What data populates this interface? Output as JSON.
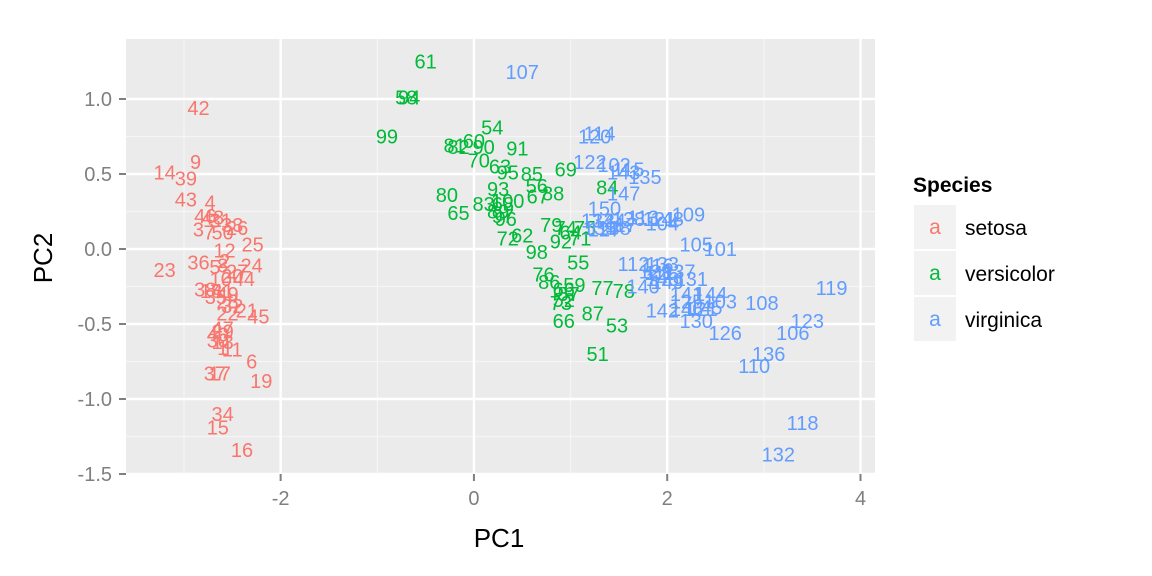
{
  "chart_data": {
    "type": "scatter",
    "title": "",
    "xlabel": "PC1",
    "ylabel": "PC2",
    "xlim": [
      -3.6,
      4.15
    ],
    "ylim": [
      -1.5,
      1.4
    ],
    "x_ticks": [
      -2,
      0,
      2,
      4
    ],
    "x_tick_labels": [
      "-2",
      "0",
      "2",
      "4"
    ],
    "y_ticks": [
      -1.5,
      -1.0,
      -0.5,
      0.0,
      0.5,
      1.0
    ],
    "y_tick_labels": [
      "-1.5",
      "-1.0",
      "-0.5",
      "0.0",
      "0.5",
      "1.0"
    ],
    "grid": true,
    "marker": "text labels (observation index)",
    "legend": {
      "title": "Species",
      "position": "right",
      "glyph": "a",
      "entries": [
        "setosa",
        "versicolor",
        "virginica"
      ]
    },
    "colors": {
      "setosa": "#f8766d",
      "versicolor": "#00ba38",
      "virginica": "#619cff",
      "panel_background": "#ebebeb",
      "grid_major": "#ffffff",
      "grid_minor": "#f5f5f5",
      "legend_key_background": "#f2f2f2"
    },
    "series": [
      {
        "name": "setosa",
        "points": [
          {
            "label": "42",
            "x": -2.85,
            "y": 0.94
          },
          {
            "label": "9",
            "x": -2.88,
            "y": 0.58
          },
          {
            "label": "14",
            "x": -3.2,
            "y": 0.51
          },
          {
            "label": "39",
            "x": -2.98,
            "y": 0.47
          },
          {
            "label": "43",
            "x": -2.98,
            "y": 0.33
          },
          {
            "label": "4",
            "x": -2.73,
            "y": 0.31
          },
          {
            "label": "46",
            "x": -2.78,
            "y": 0.22
          },
          {
            "label": "48",
            "x": -2.7,
            "y": 0.21
          },
          {
            "label": "31",
            "x": -2.62,
            "y": 0.19
          },
          {
            "label": "26",
            "x": -2.45,
            "y": 0.14
          },
          {
            "label": "3",
            "x": -2.85,
            "y": 0.13
          },
          {
            "label": "7",
            "x": -2.74,
            "y": 0.11
          },
          {
            "label": "50",
            "x": -2.6,
            "y": 0.11
          },
          {
            "label": "25",
            "x": -2.29,
            "y": 0.03
          },
          {
            "label": "12",
            "x": -2.58,
            "y": -0.01
          },
          {
            "label": "23",
            "x": -3.2,
            "y": -0.14
          },
          {
            "label": "36",
            "x": -2.85,
            "y": -0.09
          },
          {
            "label": "5",
            "x": -2.68,
            "y": -0.12
          },
          {
            "label": "8",
            "x": -2.6,
            "y": -0.11
          },
          {
            "label": "24",
            "x": -2.3,
            "y": -0.11
          },
          {
            "label": "27",
            "x": -2.45,
            "y": -0.15
          },
          {
            "label": "10",
            "x": -2.62,
            "y": -0.2
          },
          {
            "label": "44",
            "x": -2.38,
            "y": -0.2
          },
          {
            "label": "38",
            "x": -2.78,
            "y": -0.27
          },
          {
            "label": "18",
            "x": -2.72,
            "y": -0.28
          },
          {
            "label": "41",
            "x": -2.6,
            "y": -0.28
          },
          {
            "label": "35",
            "x": -2.67,
            "y": -0.32
          },
          {
            "label": "28",
            "x": -2.55,
            "y": -0.35
          },
          {
            "label": "32",
            "x": -2.5,
            "y": -0.38
          },
          {
            "label": "21",
            "x": -2.35,
            "y": -0.41
          },
          {
            "label": "22",
            "x": -2.55,
            "y": -0.43
          },
          {
            "label": "45",
            "x": -2.23,
            "y": -0.45
          },
          {
            "label": "47",
            "x": -2.6,
            "y": -0.53
          },
          {
            "label": "29",
            "x": -2.6,
            "y": -0.55
          },
          {
            "label": "40",
            "x": -2.65,
            "y": -0.57
          },
          {
            "label": "30",
            "x": -2.65,
            "y": -0.61
          },
          {
            "label": "13",
            "x": -2.6,
            "y": -0.62
          },
          {
            "label": "1",
            "x": -2.6,
            "y": -0.66
          },
          {
            "label": "11",
            "x": -2.5,
            "y": -0.67
          },
          {
            "label": "6",
            "x": -2.3,
            "y": -0.75
          },
          {
            "label": "17",
            "x": -2.63,
            "y": -0.83
          },
          {
            "label": "37",
            "x": -2.68,
            "y": -0.83
          },
          {
            "label": "19",
            "x": -2.2,
            "y": -0.88
          },
          {
            "label": "34",
            "x": -2.6,
            "y": -1.1
          },
          {
            "label": "15",
            "x": -2.65,
            "y": -1.19
          },
          {
            "label": "16",
            "x": -2.4,
            "y": -1.34
          },
          {
            "label": "2",
            "x": -2.58,
            "y": -0.08
          },
          {
            "label": "20",
            "x": -2.5,
            "y": -0.18
          },
          {
            "label": "33",
            "x": -2.5,
            "y": 0.16
          },
          {
            "label": "49",
            "x": -2.55,
            "y": -0.3
          }
        ]
      },
      {
        "name": "versicolor",
        "points": [
          {
            "label": "61",
            "x": -0.5,
            "y": 1.25
          },
          {
            "label": "58",
            "x": -0.7,
            "y": 1.01
          },
          {
            "label": "94",
            "x": -0.67,
            "y": 1.01
          },
          {
            "label": "99",
            "x": -0.9,
            "y": 0.75
          },
          {
            "label": "54",
            "x": 0.19,
            "y": 0.81
          },
          {
            "label": "81",
            "x": -0.2,
            "y": 0.69
          },
          {
            "label": "60",
            "x": 0.0,
            "y": 0.72
          },
          {
            "label": "82",
            "x": -0.16,
            "y": 0.68
          },
          {
            "label": "90",
            "x": 0.1,
            "y": 0.68
          },
          {
            "label": "91",
            "x": 0.45,
            "y": 0.67
          },
          {
            "label": "70",
            "x": 0.05,
            "y": 0.59
          },
          {
            "label": "63",
            "x": 0.27,
            "y": 0.55
          },
          {
            "label": "69",
            "x": 0.95,
            "y": 0.53
          },
          {
            "label": "95",
            "x": 0.35,
            "y": 0.51
          },
          {
            "label": "85",
            "x": 0.6,
            "y": 0.5
          },
          {
            "label": "56",
            "x": 0.65,
            "y": 0.42
          },
          {
            "label": "84",
            "x": 1.38,
            "y": 0.41
          },
          {
            "label": "93",
            "x": 0.25,
            "y": 0.4
          },
          {
            "label": "88",
            "x": 0.82,
            "y": 0.37
          },
          {
            "label": "67",
            "x": 0.66,
            "y": 0.35
          },
          {
            "label": "80",
            "x": -0.28,
            "y": 0.36
          },
          {
            "label": "83",
            "x": 0.1,
            "y": 0.3
          },
          {
            "label": "68",
            "x": 0.3,
            "y": 0.3
          },
          {
            "label": "100",
            "x": 0.35,
            "y": 0.32
          },
          {
            "label": "89",
            "x": 0.25,
            "y": 0.25
          },
          {
            "label": "65",
            "x": -0.16,
            "y": 0.24
          },
          {
            "label": "97",
            "x": 0.3,
            "y": 0.22
          },
          {
            "label": "96",
            "x": 0.33,
            "y": 0.2
          },
          {
            "label": "79",
            "x": 0.8,
            "y": 0.16
          },
          {
            "label": "74",
            "x": 0.95,
            "y": 0.14
          },
          {
            "label": "64",
            "x": 1.0,
            "y": 0.11
          },
          {
            "label": "75",
            "x": 1.15,
            "y": 0.14
          },
          {
            "label": "62",
            "x": 0.5,
            "y": 0.09
          },
          {
            "label": "72",
            "x": 0.35,
            "y": 0.07
          },
          {
            "label": "71",
            "x": 1.1,
            "y": 0.07
          },
          {
            "label": "92",
            "x": 0.9,
            "y": 0.05
          },
          {
            "label": "98",
            "x": 0.65,
            "y": -0.02
          },
          {
            "label": "55",
            "x": 1.08,
            "y": -0.09
          },
          {
            "label": "76",
            "x": 0.72,
            "y": -0.17
          },
          {
            "label": "86",
            "x": 0.78,
            "y": -0.22
          },
          {
            "label": "59",
            "x": 1.04,
            "y": -0.24
          },
          {
            "label": "77",
            "x": 1.33,
            "y": -0.26
          },
          {
            "label": "66",
            "x": 0.93,
            "y": -0.27
          },
          {
            "label": "57",
            "x": 0.98,
            "y": -0.3
          },
          {
            "label": "78",
            "x": 1.55,
            "y": -0.28
          },
          {
            "label": "52",
            "x": 0.93,
            "y": -0.34
          },
          {
            "label": "73",
            "x": 0.9,
            "y": -0.36
          },
          {
            "label": "87",
            "x": 1.23,
            "y": -0.43
          },
          {
            "label": "66",
            "x": 0.93,
            "y": -0.48
          },
          {
            "label": "53",
            "x": 1.48,
            "y": -0.51
          },
          {
            "label": "51",
            "x": 1.28,
            "y": -0.7
          }
        ]
      },
      {
        "name": "virginica",
        "points": [
          {
            "label": "107",
            "x": 0.5,
            "y": 1.18
          },
          {
            "label": "114",
            "x": 1.3,
            "y": 0.77
          },
          {
            "label": "120",
            "x": 1.25,
            "y": 0.75
          },
          {
            "label": "122",
            "x": 1.2,
            "y": 0.58
          },
          {
            "label": "102",
            "x": 1.45,
            "y": 0.56
          },
          {
            "label": "115",
            "x": 1.6,
            "y": 0.53
          },
          {
            "label": "143",
            "x": 1.55,
            "y": 0.51
          },
          {
            "label": "135",
            "x": 1.77,
            "y": 0.48
          },
          {
            "label": "147",
            "x": 1.55,
            "y": 0.37
          },
          {
            "label": "150",
            "x": 1.35,
            "y": 0.27
          },
          {
            "label": "109",
            "x": 2.22,
            "y": 0.23
          },
          {
            "label": "113",
            "x": 1.75,
            "y": 0.21
          },
          {
            "label": "128",
            "x": 1.6,
            "y": 0.2
          },
          {
            "label": "124",
            "x": 1.4,
            "y": 0.19
          },
          {
            "label": "134",
            "x": 1.28,
            "y": 0.19
          },
          {
            "label": "121",
            "x": 1.92,
            "y": 0.2
          },
          {
            "label": "148",
            "x": 2.0,
            "y": 0.2
          },
          {
            "label": "104",
            "x": 1.95,
            "y": 0.17
          },
          {
            "label": "139",
            "x": 1.3,
            "y": 0.14
          },
          {
            "label": "127",
            "x": 1.35,
            "y": 0.13
          },
          {
            "label": "138",
            "x": 1.45,
            "y": 0.14
          },
          {
            "label": "117",
            "x": 1.52,
            "y": 0.16
          },
          {
            "label": "105",
            "x": 2.3,
            "y": 0.03
          },
          {
            "label": "101",
            "x": 2.55,
            "y": 0.0
          },
          {
            "label": "133",
            "x": 1.95,
            "y": -0.1
          },
          {
            "label": "116",
            "x": 1.9,
            "y": -0.11
          },
          {
            "label": "112",
            "x": 1.65,
            "y": -0.1
          },
          {
            "label": "129",
            "x": 1.88,
            "y": -0.15
          },
          {
            "label": "111",
            "x": 1.92,
            "y": -0.16
          },
          {
            "label": "137",
            "x": 2.12,
            "y": -0.15
          },
          {
            "label": "146",
            "x": 1.95,
            "y": -0.2
          },
          {
            "label": "149",
            "x": 2.0,
            "y": -0.22
          },
          {
            "label": "131",
            "x": 2.25,
            "y": -0.2
          },
          {
            "label": "140",
            "x": 1.75,
            "y": -0.25
          },
          {
            "label": "141",
            "x": 2.2,
            "y": -0.3
          },
          {
            "label": "144",
            "x": 2.45,
            "y": -0.3
          },
          {
            "label": "125",
            "x": 2.2,
            "y": -0.35
          },
          {
            "label": "103",
            "x": 2.55,
            "y": -0.35
          },
          {
            "label": "108",
            "x": 2.98,
            "y": -0.36
          },
          {
            "label": "145",
            "x": 2.4,
            "y": -0.39
          },
          {
            "label": "142",
            "x": 1.95,
            "y": -0.41
          },
          {
            "label": "146",
            "x": 2.2,
            "y": -0.4
          },
          {
            "label": "121",
            "x": 2.35,
            "y": -0.4
          },
          {
            "label": "130",
            "x": 2.3,
            "y": -0.48
          },
          {
            "label": "119",
            "x": 3.7,
            "y": -0.26
          },
          {
            "label": "123",
            "x": 3.45,
            "y": -0.48
          },
          {
            "label": "106",
            "x": 3.3,
            "y": -0.56
          },
          {
            "label": "126",
            "x": 2.6,
            "y": -0.56
          },
          {
            "label": "136",
            "x": 3.05,
            "y": -0.7
          },
          {
            "label": "110",
            "x": 2.9,
            "y": -0.78
          },
          {
            "label": "118",
            "x": 3.4,
            "y": -1.16
          },
          {
            "label": "132",
            "x": 3.15,
            "y": -1.37
          }
        ]
      }
    ]
  }
}
